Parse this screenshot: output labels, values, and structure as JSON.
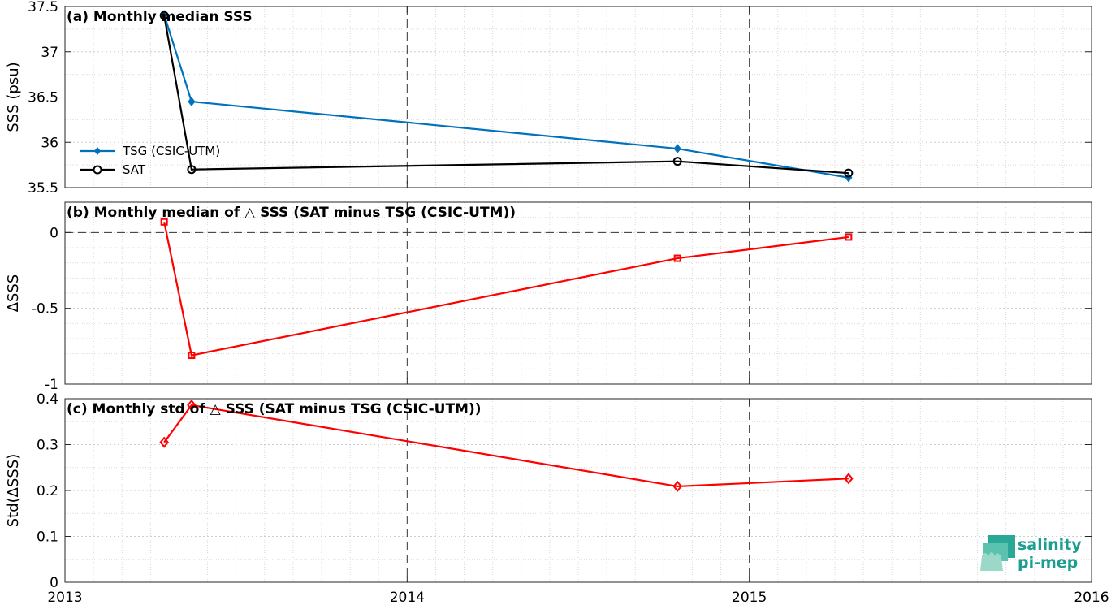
{
  "chart_data": [
    {
      "type": "line",
      "title": "(a) Monthly median SSS",
      "ylabel": "SSS (psu)",
      "xlim": [
        2013,
        2016
      ],
      "ylim": [
        35.5,
        37.5
      ],
      "yticks": [
        "35.5",
        "36",
        "36.5",
        "37",
        "37.5"
      ],
      "legend_placement": "lower-left",
      "grid": true,
      "x": [
        2013.29,
        2013.37,
        2014.79,
        2015.29
      ],
      "series": [
        {
          "name": "TSG (CSIC-UTM)",
          "color": "#0072bd",
          "marker": "filled-diamond",
          "values": [
            37.41,
            36.45,
            35.93,
            35.61
          ]
        },
        {
          "name": "SAT",
          "color": "#000000",
          "marker": "circle",
          "values": [
            37.4,
            35.7,
            35.79,
            35.66
          ]
        }
      ]
    },
    {
      "type": "line",
      "title": "(b) Monthly median of △ SSS (SAT minus TSG (CSIC-UTM))",
      "ylabel": "ΔSSS",
      "xlim": [
        2013,
        2016
      ],
      "ylim": [
        -1,
        0.2
      ],
      "yticks": [
        "-1",
        "-0.5",
        "0"
      ],
      "zero_line": true,
      "grid": true,
      "x": [
        2013.29,
        2013.37,
        2014.79,
        2015.29
      ],
      "series": [
        {
          "color": "#ff0000",
          "marker": "square",
          "values": [
            0.07,
            -0.81,
            -0.17,
            -0.03
          ]
        }
      ]
    },
    {
      "type": "line",
      "title": "(c) Monthly std of △ SSS (SAT minus TSG (CSIC-UTM))",
      "ylabel": "Std(ΔSSS)",
      "xlim": [
        2013,
        2016
      ],
      "ylim": [
        0,
        0.4
      ],
      "yticks": [
        "0",
        "0.1",
        "0.2",
        "0.3",
        "0.4"
      ],
      "xticks": [
        "2013",
        "2014",
        "2015",
        "2016"
      ],
      "grid": true,
      "x": [
        2013.29,
        2013.37,
        2014.79,
        2015.29
      ],
      "series": [
        {
          "color": "#ff0000",
          "marker": "diamond",
          "values": [
            0.305,
            0.386,
            0.209,
            0.226
          ]
        }
      ]
    }
  ],
  "logo": {
    "line1": "salinity",
    "line2": "pi-mep",
    "color": "#1b9e8f"
  }
}
